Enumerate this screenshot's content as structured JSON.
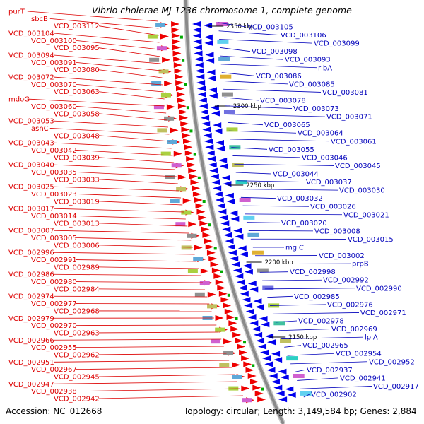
{
  "title": "Vibrio cholerae MJ-1236 chromosome 1, complete genome",
  "accession": "Accession: NC_012668",
  "topology": "Topology: circular; Length: 3,149,584 bp; Genes: 2,884",
  "colors": {
    "left_label": "#dd0000",
    "right_label": "#0000bb",
    "backbone": "#8a8a8a",
    "forward_gene": "#ee0000",
    "reverse_gene": "#0000ee",
    "tick": "#00aa00"
  },
  "scale_ticks": [
    "2350 kbp",
    "2300 kbp",
    "2250 kbp",
    "2200 kbp",
    "2150 kbp"
  ],
  "left_labels": [
    "purT",
    "sbcB",
    "VCD_003112",
    "VCD_003104",
    "VCD_003100",
    "VCD_003095",
    "VCD_003094",
    "VCD_003091",
    "VCD_003080",
    "VCD_003072",
    "VCD_003070",
    "VCD_003063",
    "mdoG",
    "VCD_003060",
    "VCD_003058",
    "VCD_003053",
    "asnC",
    "VCD_003048",
    "VCD_003043",
    "VCD_003042",
    "VCD_003039",
    "VCD_003040",
    "VCD_003035",
    "VCD_003033",
    "VCD_003025",
    "VCD_003023",
    "VCD_003019",
    "VCD_003017",
    "VCD_003014",
    "VCD_003013",
    "VCD_003007",
    "VCD_003005",
    "VCD_003006",
    "VCD_002996",
    "VCD_002991",
    "VCD_002989",
    "VCD_002986",
    "VCD_002980",
    "VCD_002984",
    "VCD_002974",
    "VCD_002977",
    "VCD_002968",
    "VCD_002979",
    "VCD_002970",
    "VCD_002963",
    "VCD_002966",
    "VCD_002955",
    "VCD_002962",
    "VCD_002951",
    "VCD_002967",
    "VCD_002945",
    "VCD_002947",
    "VCD_002938",
    "VCD_002942"
  ],
  "right_labels": [
    "VCD_003105",
    "VCD_003106",
    "VCD_003099",
    "VCD_003098",
    "VCD_003093",
    "ribA",
    "VCD_003086",
    "VCD_003085",
    "VCD_003081",
    "VCD_003078",
    "VCD_003073",
    "VCD_003071",
    "VCD_003065",
    "VCD_003064",
    "VCD_003061",
    "VCD_003055",
    "VCD_003046",
    "VCD_003045",
    "VCD_003044",
    "VCD_003037",
    "VCD_003030",
    "VCD_003032",
    "VCD_003026",
    "VCD_003021",
    "VCD_003020",
    "VCD_003008",
    "VCD_003015",
    "mglC",
    "VCD_003002",
    "prpB",
    "VCD_002998",
    "VCD_002992",
    "VCD_002990",
    "VCD_002985",
    "VCD_002976",
    "VCD_002971",
    "VCD_002978",
    "VCD_002969",
    "lplA",
    "VCD_002965",
    "VCD_002954",
    "VCD_002952",
    "VCD_002937",
    "VCD_002941",
    "VCD_002917",
    "VCD_002902"
  ]
}
